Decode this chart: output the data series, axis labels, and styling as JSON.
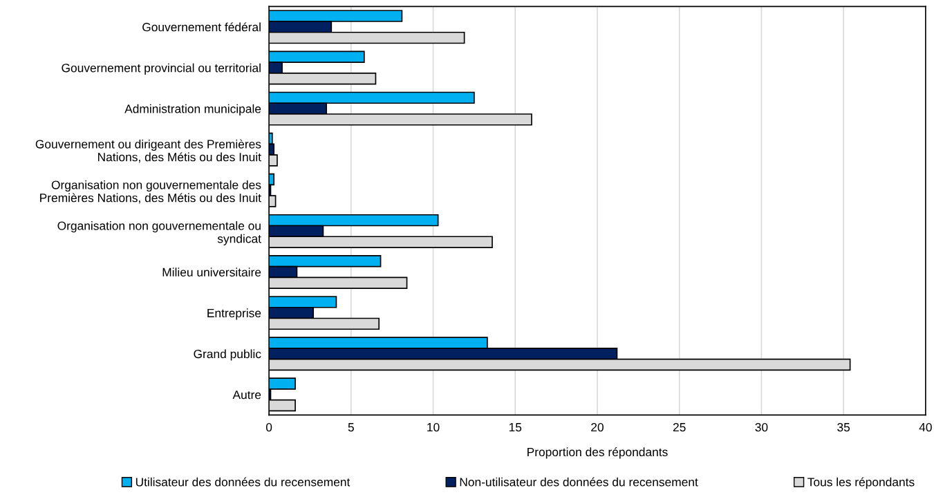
{
  "chart_data": {
    "type": "bar",
    "orientation": "horizontal",
    "xlabel": "Proportion des répondants",
    "categories": [
      "Gouvernement fédéral",
      "Gouvernement provincial ou territorial",
      "Administration municipale",
      "Gouvernement ou dirigeant des Premières\nNations, des Métis ou des Inuit",
      "Organisation non gouvernementale des\nPremières Nations, des Métis ou des Inuit",
      "Organisation non gouvernementale ou\nsyndicat",
      "Milieu universitaire",
      "Entreprise",
      "Grand public",
      "Autre"
    ],
    "series": [
      {
        "name": "Utilisateur des données du recensement",
        "color": "#00b0f0",
        "values": [
          8.1,
          5.8,
          12.5,
          0.2,
          0.3,
          10.3,
          6.8,
          4.1,
          13.3,
          1.6
        ]
      },
      {
        "name": "Non-utilisateur des données du recensement",
        "color": "#002060",
        "values": [
          3.8,
          0.8,
          3.5,
          0.3,
          0.1,
          3.3,
          1.7,
          2.7,
          21.2,
          0.1
        ]
      },
      {
        "name": "Tous les répondants",
        "color": "#d9d9d9",
        "values": [
          11.9,
          6.5,
          16.0,
          0.5,
          0.4,
          13.6,
          8.4,
          6.7,
          35.4,
          1.6
        ]
      }
    ],
    "xlim": [
      0,
      40
    ],
    "xticks": [
      0,
      5,
      10,
      15,
      20,
      25,
      30,
      35,
      40
    ],
    "grid": "x",
    "legend": "bottom"
  }
}
